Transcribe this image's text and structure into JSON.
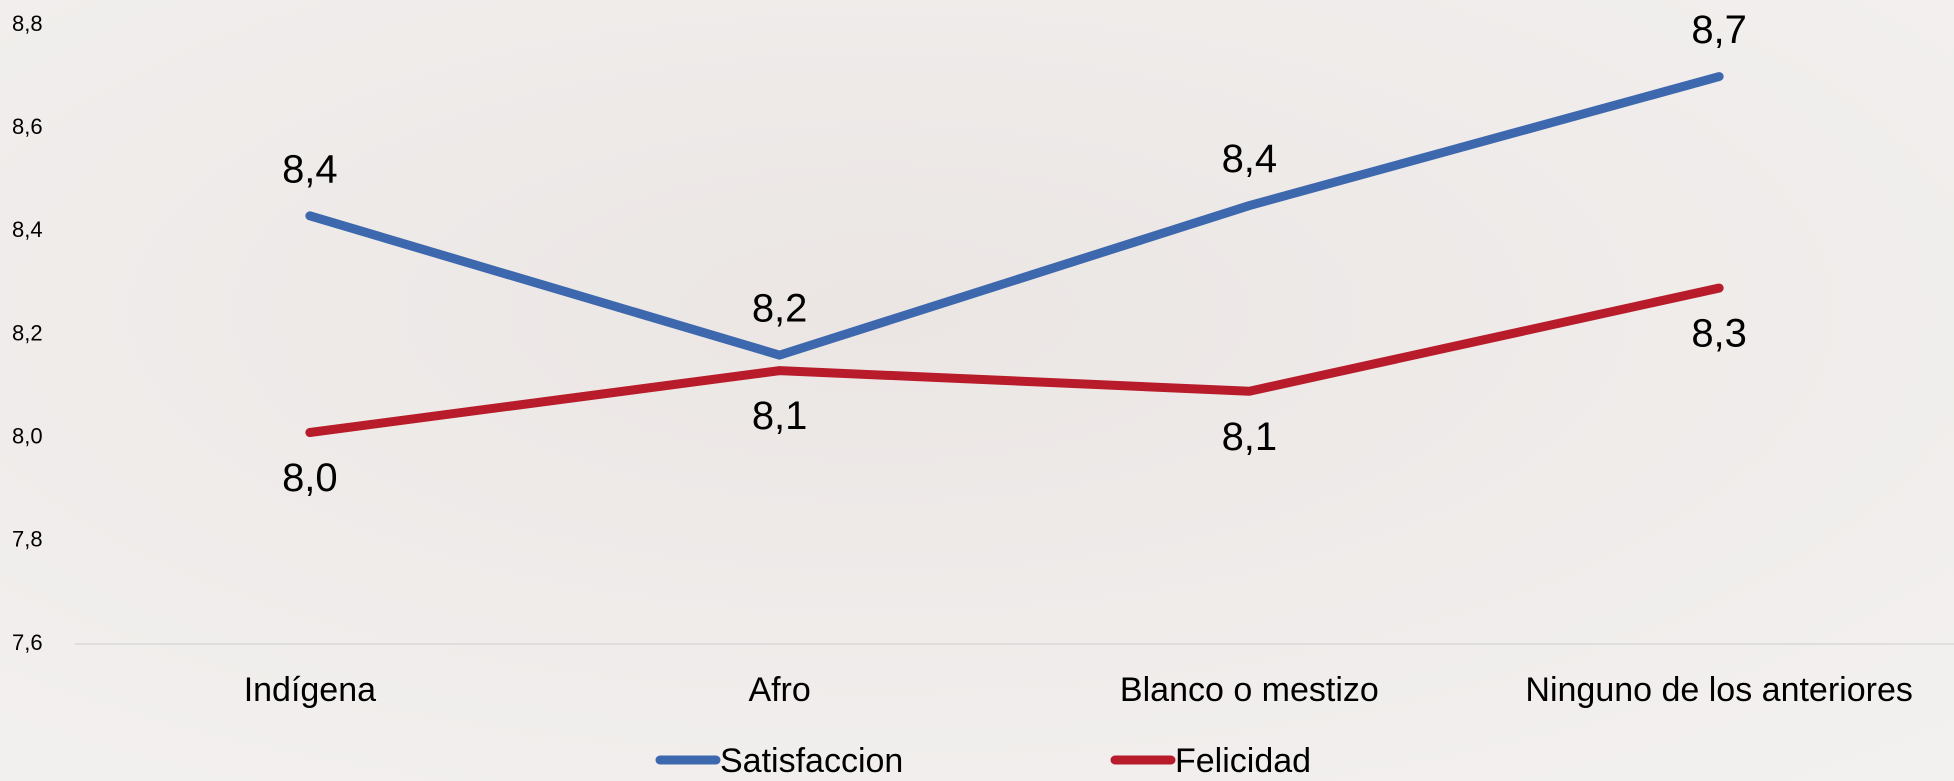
{
  "chart_data": {
    "type": "line",
    "categories": [
      "Indígena",
      "Afro",
      "Blanco o mestizo",
      "Ninguno de los anteriores"
    ],
    "series": [
      {
        "name": "Satisfaccion",
        "color": "#3d68ad",
        "values": [
          8.43,
          8.16,
          8.45,
          8.7
        ],
        "value_labels": [
          "8,4",
          "8,2",
          "8,4",
          "8,7"
        ]
      },
      {
        "name": "Felicidad",
        "color": "#b81c2b",
        "values": [
          8.01,
          8.13,
          8.09,
          8.29
        ],
        "value_labels": [
          "8,0",
          "8,1",
          "8,1",
          "8,3"
        ]
      }
    ],
    "ylim": [
      7.6,
      8.8
    ],
    "yticks": [
      {
        "value": 7.6,
        "label": "7,6"
      },
      {
        "value": 7.8,
        "label": "7,8"
      },
      {
        "value": 8.0,
        "label": "8,0"
      },
      {
        "value": 8.2,
        "label": "8,2"
      },
      {
        "value": 8.4,
        "label": "8,4"
      },
      {
        "value": 8.6,
        "label": "8,6"
      },
      {
        "value": 8.8,
        "label": "8,8"
      }
    ],
    "legend": "bottom"
  }
}
